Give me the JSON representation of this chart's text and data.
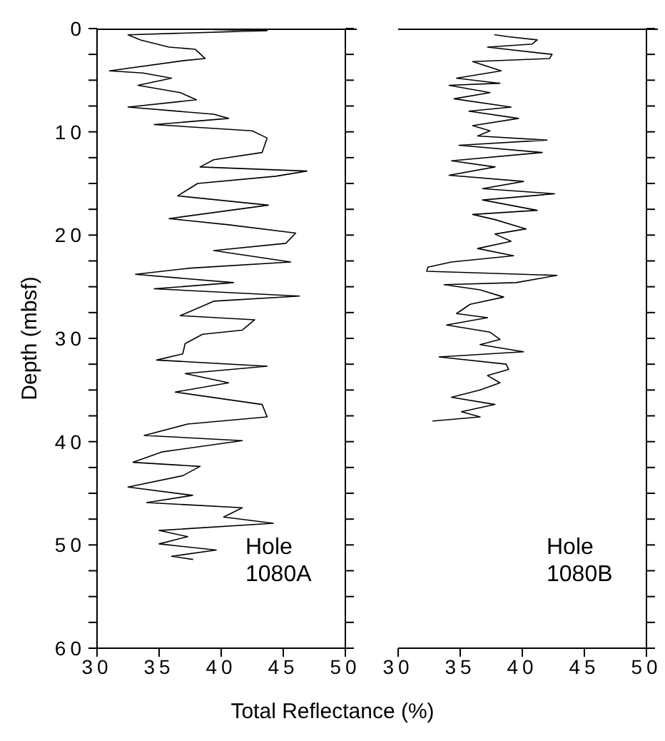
{
  "chart_data": [
    {
      "type": "line",
      "xlabel": "Total Reflectance (%)",
      "ylabel": "Depth (mbsf)",
      "annotations": [
        "Hole 1080A"
      ],
      "xlim": [
        30,
        50
      ],
      "xticks": [
        30,
        35,
        40,
        45,
        50
      ],
      "ylim": [
        60,
        0
      ],
      "yticks": [
        0,
        {
          "value": 2.5,
          "label": null
        },
        {
          "value": 5,
          "label": null
        },
        {
          "value": 7.5,
          "label": null
        },
        10,
        {
          "value": 12.5,
          "label": null
        },
        {
          "value": 15,
          "label": null
        },
        {
          "value": 17.5,
          "label": null
        },
        20,
        {
          "value": 22.5,
          "label": null
        },
        {
          "value": 25,
          "label": null
        },
        {
          "value": 27.5,
          "label": null
        },
        30,
        {
          "value": 32.5,
          "label": null
        },
        {
          "value": 35,
          "label": null
        },
        {
          "value": 37.5,
          "label": null
        },
        40,
        {
          "value": 42.5,
          "label": null
        },
        {
          "value": 45,
          "label": null
        },
        {
          "value": 47.5,
          "label": null
        },
        50,
        {
          "value": 52.5,
          "label": null
        },
        {
          "value": 55,
          "label": null
        },
        {
          "value": 57.5,
          "label": null
        },
        60
      ],
      "grid": false,
      "legend": false,
      "marker": "none",
      "line_style": "solid",
      "series": [
        {
          "color": "#000000",
          "x": [
            39.4,
            43.7,
            32.5,
            33.5,
            35.8,
            37.9,
            38.7,
            37,
            31,
            33.7,
            36,
            33.3,
            36.7,
            38,
            32.5,
            39.4,
            40.6,
            34.6,
            42.5,
            43.7,
            43.3,
            39.4,
            38.3,
            46.9,
            44.4,
            38.1,
            36.5,
            43.8,
            35.8,
            40.6,
            46,
            45.2,
            39.4,
            45.6,
            37.5,
            33.1,
            41,
            34.6,
            46.3,
            39.4,
            36.7,
            42.7,
            41.7,
            38.5,
            37.1,
            36.9,
            34.8,
            43.7,
            37.1,
            40.6,
            36.3,
            43.3,
            43.7,
            37.3,
            33.8,
            41.7,
            35.2,
            32.9,
            38.3,
            36.9,
            32.5,
            37.7,
            34,
            41.7,
            40.2,
            44.2,
            35,
            37.3,
            35,
            39.6,
            36,
            37.7
          ],
          "values": [
            0.1,
            0.2,
            0.6,
            1.1,
            1.8,
            2,
            2.9,
            3.1,
            4.1,
            4.3,
            4.8,
            5.5,
            6.2,
            6.9,
            7.6,
            8.3,
            8.7,
            9.3,
            9.9,
            10.6,
            12,
            12.7,
            13.4,
            13.8,
            14.3,
            15,
            16.2,
            17.1,
            18.4,
            19,
            19.8,
            20.8,
            21.5,
            22.6,
            23.2,
            23.8,
            24.6,
            25.2,
            25.9,
            26.4,
            27.8,
            28.2,
            29.2,
            29.6,
            30.5,
            31.5,
            32.1,
            32.7,
            33.4,
            34.3,
            35.2,
            36.4,
            37.6,
            38.3,
            39.4,
            39.9,
            41,
            42,
            42.4,
            43.3,
            44.4,
            45.2,
            45.9,
            46.4,
            47.3,
            47.9,
            48.6,
            49.2,
            49.9,
            50.5,
            51.1,
            51.4
          ]
        }
      ]
    },
    {
      "type": "line",
      "annotations": [
        "Hole 1080B"
      ],
      "xlim": [
        30,
        50
      ],
      "xticks": [
        30,
        35,
        40,
        45,
        50
      ],
      "ylim": [
        60,
        0
      ],
      "yticks": [
        0,
        {
          "value": 2.5,
          "label": null
        },
        {
          "value": 5,
          "label": null
        },
        {
          "value": 7.5,
          "label": null
        },
        10,
        {
          "value": 12.5,
          "label": null
        },
        {
          "value": 15,
          "label": null
        },
        {
          "value": 17.5,
          "label": null
        },
        20,
        {
          "value": 22.5,
          "label": null
        },
        {
          "value": 25,
          "label": null
        },
        {
          "value": 27.5,
          "label": null
        },
        30,
        {
          "value": 32.5,
          "label": null
        },
        {
          "value": 35,
          "label": null
        },
        {
          "value": 37.5,
          "label": null
        },
        40,
        {
          "value": 42.5,
          "label": null
        },
        {
          "value": 45,
          "label": null
        },
        {
          "value": 47.5,
          "label": null
        },
        50,
        {
          "value": 52.5,
          "label": null
        },
        {
          "value": 55,
          "label": null
        },
        {
          "value": 57.5,
          "label": null
        },
        60
      ],
      "tick_labels": "x",
      "grid": false,
      "legend": false,
      "marker": "none",
      "line_style": "solid",
      "series": [
        {
          "color": "#000000",
          "x": [
            37.8,
            38.9,
            41.2,
            40.8,
            37.2,
            42.4,
            42.2,
            36,
            38.3,
            34.7,
            38.2,
            34.1,
            37.4,
            34.5,
            39.1,
            35.7,
            39.7,
            36,
            37.4,
            36.4,
            42,
            34.9,
            41.6,
            34.3,
            37.8,
            34.1,
            40.1,
            36.8,
            42.6,
            36.8,
            41.2,
            36,
            37.8,
            40.3,
            37.8,
            39.1,
            36.4,
            39.3,
            34.3,
            32.4,
            32.3,
            42.8,
            39.5,
            33.7,
            36.6,
            38.5,
            35.8,
            34.7,
            37.2,
            33.9,
            37.4,
            38.2,
            36.6,
            40.1,
            33.3,
            38.7,
            38.9,
            37.2,
            38.2,
            36.6,
            34.3,
            37.8,
            35.1,
            36.6,
            32.8
          ],
          "values": [
            0.6,
            0.8,
            1.1,
            1.5,
            1.8,
            2.5,
            2.9,
            3.2,
            4.1,
            4.8,
            5.3,
            5.5,
            6.2,
            6.8,
            7.6,
            8,
            8.7,
            9.4,
            9.9,
            10.4,
            10.8,
            11.3,
            12,
            12.8,
            13.4,
            14.2,
            14.8,
            15.5,
            16,
            16.6,
            17.6,
            18,
            18.5,
            19.4,
            19.9,
            20.6,
            21.3,
            22,
            22.6,
            23.1,
            23.5,
            23.9,
            24.6,
            24.8,
            25.3,
            26,
            26.7,
            27.6,
            28,
            28.7,
            29.4,
            30.1,
            30.6,
            31.3,
            31.8,
            32.5,
            33,
            33.6,
            34.3,
            35,
            35.7,
            36.4,
            37.1,
            37.6,
            38
          ]
        }
      ]
    }
  ]
}
